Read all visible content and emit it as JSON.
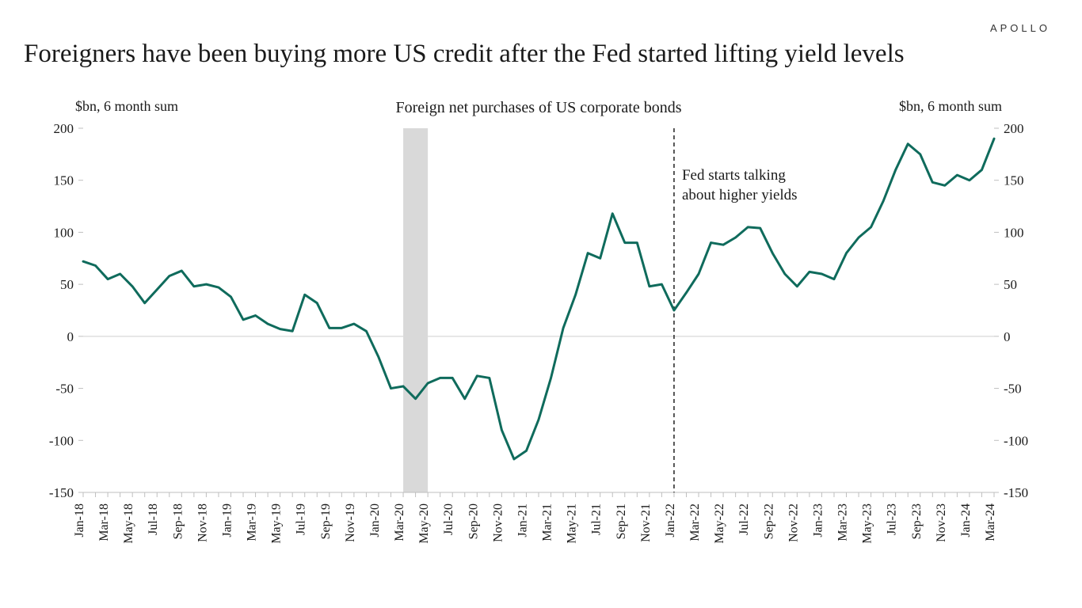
{
  "brand": "APOLLO",
  "title": "Foreigners have been buying more US credit after the Fed started lifting yield levels",
  "chart": {
    "type": "line",
    "subtitle": "Foreign net purchases of US corporate bonds",
    "y_axis_title_left": "$bn, 6 month sum",
    "y_axis_title_right": "$bn, 6 month sum",
    "ylim": [
      -150,
      200
    ],
    "ytick_step": 50,
    "line_color": "#0f6b5c",
    "line_width": 3,
    "grid_color": "#d9d9d9",
    "axis_color": "#bfbfbf",
    "background_color": "#ffffff",
    "shaded_band": {
      "start_index": 26,
      "end_index": 28,
      "color": "#d9d9d9"
    },
    "vline": {
      "index": 48,
      "color": "#222222",
      "dash": "5,4"
    },
    "annotation": {
      "line1": "Fed starts talking",
      "line2": "about higher yields",
      "anchor_index": 48
    },
    "x_labels_every": 2,
    "categories": [
      "Jan-18",
      "Feb-18",
      "Mar-18",
      "Apr-18",
      "May-18",
      "Jun-18",
      "Jul-18",
      "Aug-18",
      "Sep-18",
      "Oct-18",
      "Nov-18",
      "Dec-18",
      "Jan-19",
      "Feb-19",
      "Mar-19",
      "Apr-19",
      "May-19",
      "Jun-19",
      "Jul-19",
      "Aug-19",
      "Sep-19",
      "Oct-19",
      "Nov-19",
      "Dec-19",
      "Jan-20",
      "Feb-20",
      "Mar-20",
      "Apr-20",
      "May-20",
      "Jun-20",
      "Jul-20",
      "Aug-20",
      "Sep-20",
      "Oct-20",
      "Nov-20",
      "Dec-20",
      "Jan-21",
      "Feb-21",
      "Mar-21",
      "Apr-21",
      "May-21",
      "Jun-21",
      "Jul-21",
      "Aug-21",
      "Sep-21",
      "Oct-21",
      "Nov-21",
      "Dec-21",
      "Jan-22",
      "Feb-22",
      "Mar-22",
      "Apr-22",
      "May-22",
      "Jun-22",
      "Jul-22",
      "Aug-22",
      "Sep-22",
      "Oct-22",
      "Nov-22",
      "Dec-22",
      "Jan-23",
      "Feb-23",
      "Mar-23",
      "Apr-23",
      "May-23",
      "Jun-23",
      "Jul-23",
      "Aug-23",
      "Sep-23",
      "Oct-23",
      "Nov-23",
      "Dec-23",
      "Jan-24",
      "Feb-24",
      "Mar-24"
    ],
    "values": [
      72,
      68,
      55,
      60,
      48,
      32,
      45,
      58,
      63,
      48,
      50,
      47,
      38,
      16,
      20,
      12,
      7,
      5,
      40,
      32,
      8,
      8,
      12,
      5,
      -20,
      -50,
      -48,
      -60,
      -45,
      -40,
      -40,
      -60,
      -38,
      -40,
      -90,
      -118,
      -110,
      -80,
      -40,
      8,
      40,
      80,
      75,
      118,
      90,
      90,
      48,
      50,
      25,
      42,
      60,
      90,
      88,
      95,
      105,
      104,
      80,
      60,
      48,
      62,
      60,
      55,
      80,
      95,
      105,
      130,
      160,
      185,
      175,
      148,
      145,
      155,
      150,
      160,
      190
    ]
  }
}
